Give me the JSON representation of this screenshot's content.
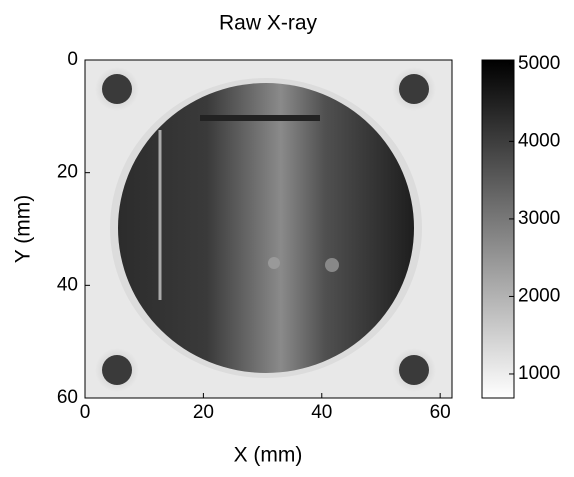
{
  "chart_data": {
    "type": "image",
    "title": "Raw X-ray",
    "x_label": "X (mm)",
    "y_label": "Y (mm)",
    "xlim": [
      0,
      62
    ],
    "xticks": [
      0,
      20,
      40,
      60
    ],
    "ylim": [
      0,
      60
    ],
    "yticks": [
      0,
      20,
      40,
      60
    ],
    "y_reversed": true,
    "colorbar": {
      "clim": [
        690,
        5050
      ],
      "ticks": [
        1000,
        2000,
        3000,
        4000,
        5000
      ],
      "colormap": [
        "#ffffff",
        "#000000"
      ]
    }
  }
}
